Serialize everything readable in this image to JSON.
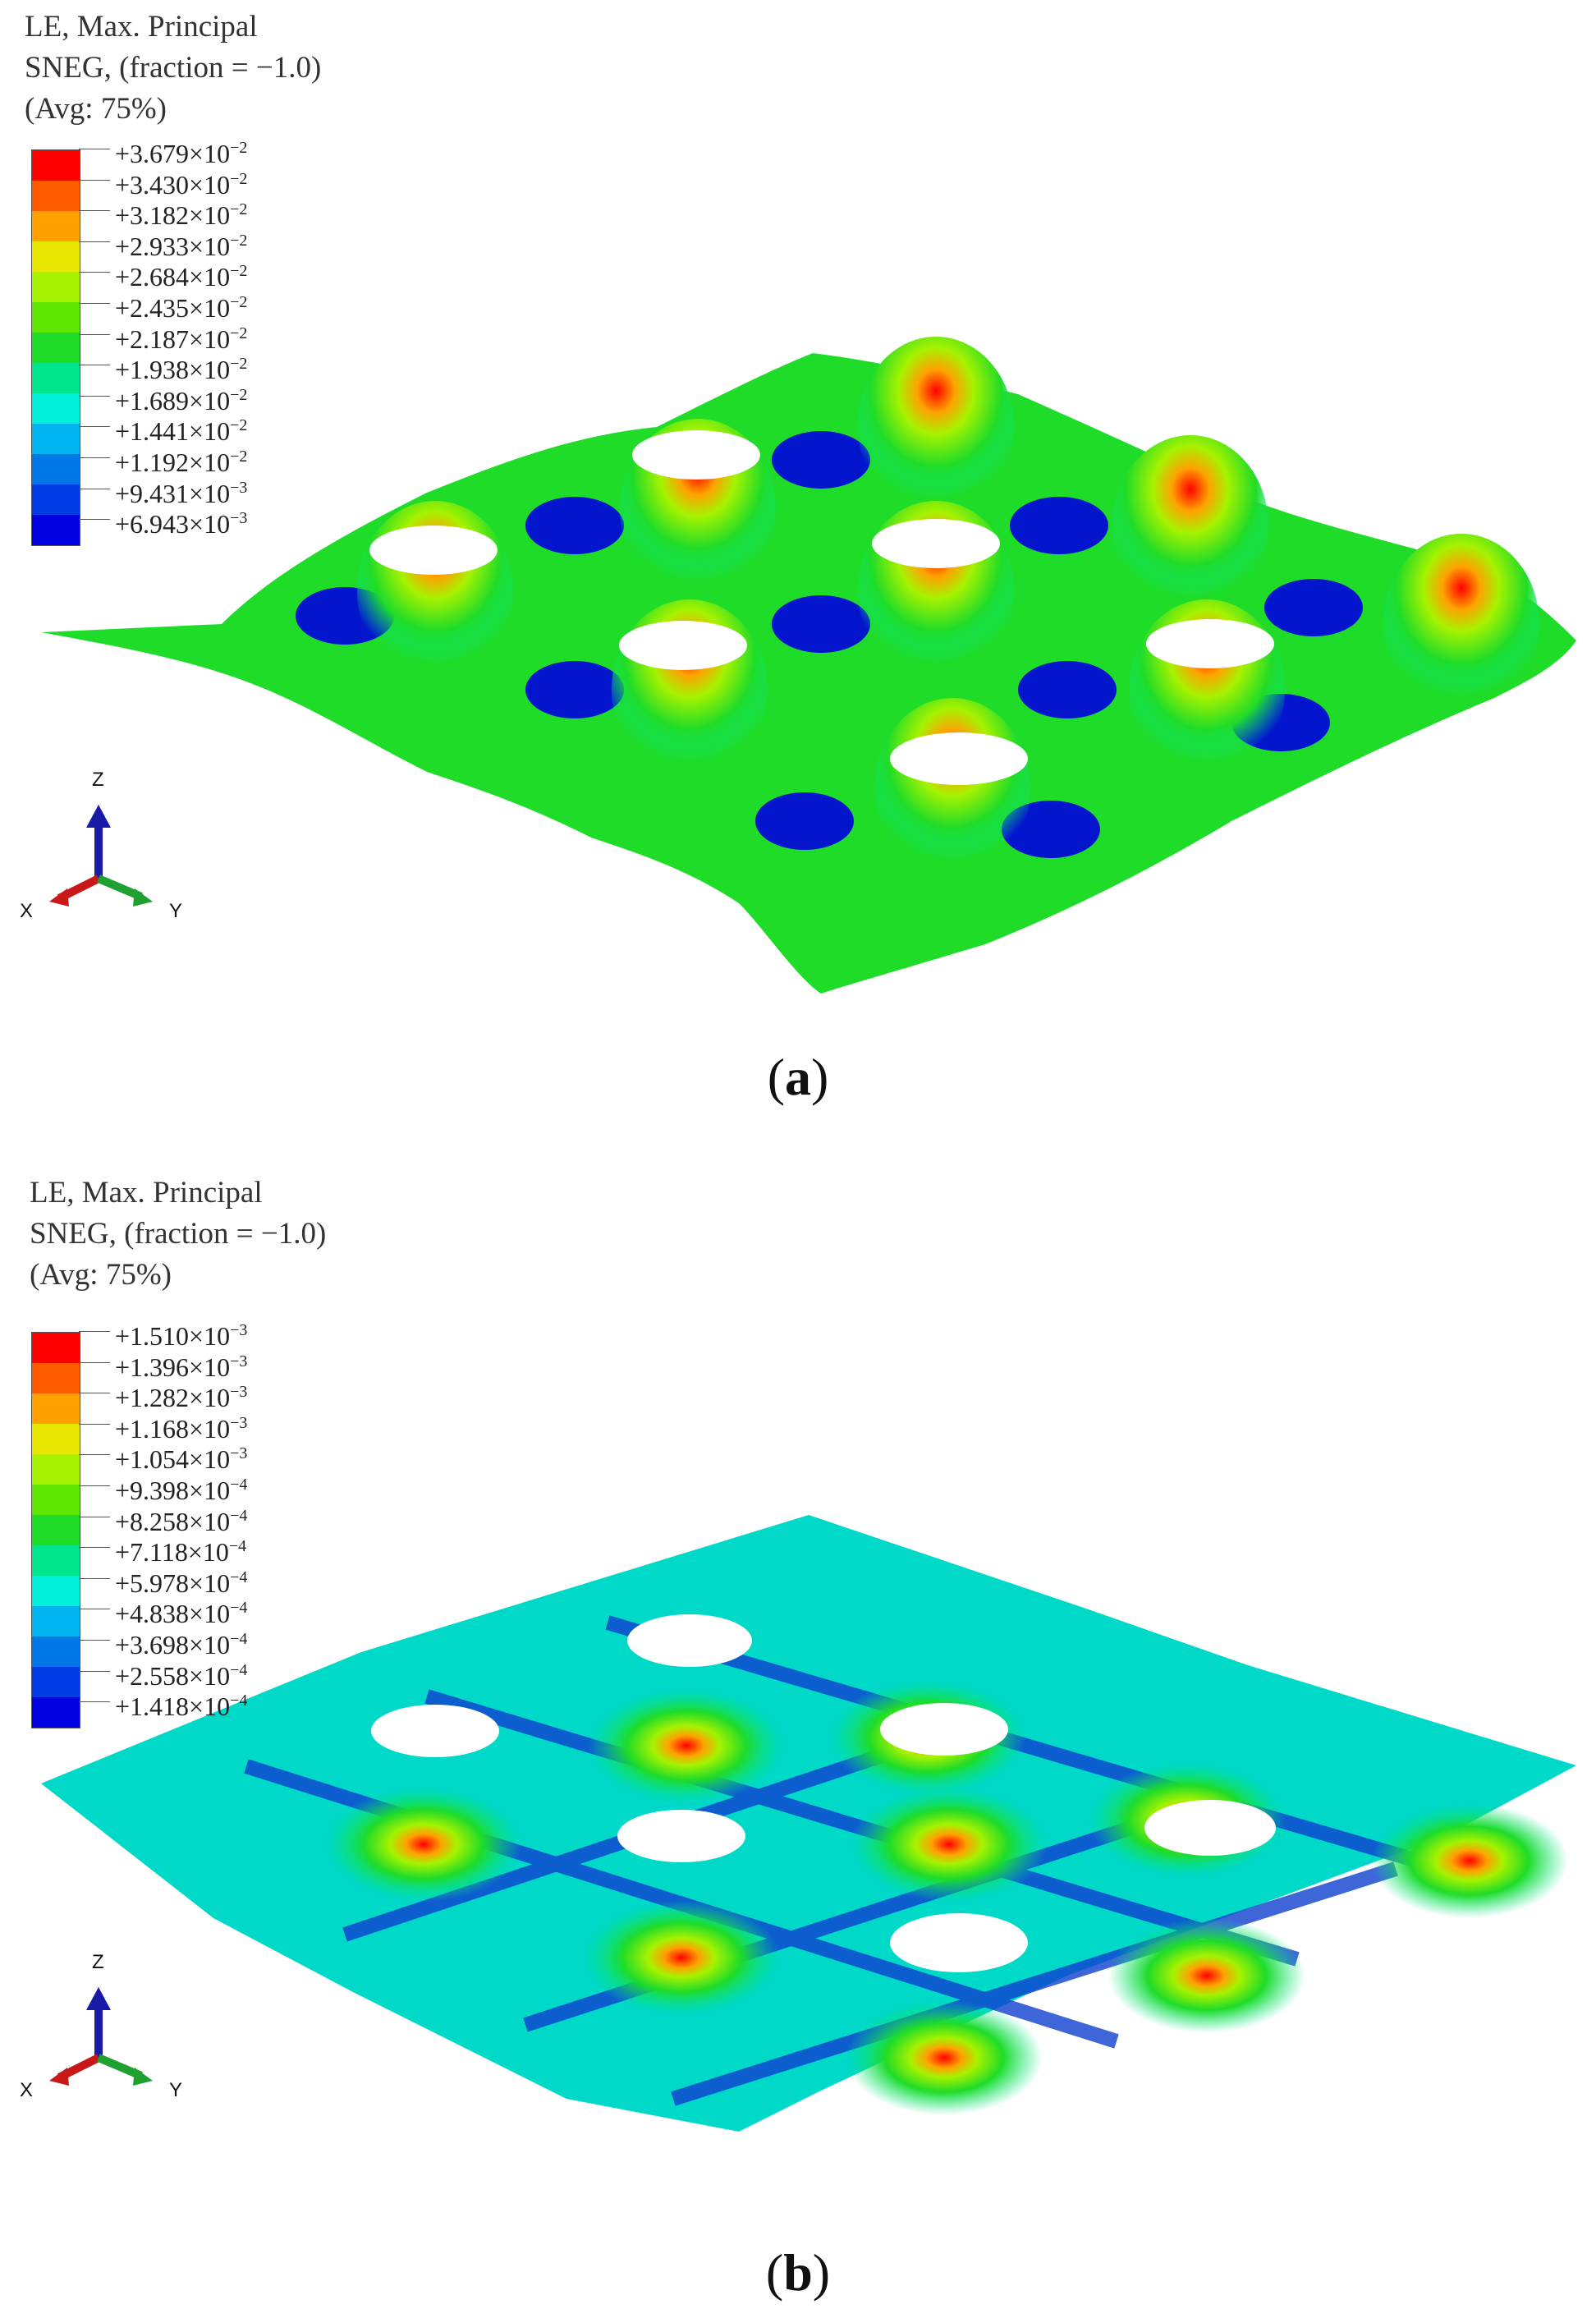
{
  "panels": [
    {
      "id": "a",
      "legend_title_1": "LE, Max. Principal",
      "legend_title_2": "SNEG, (fraction = −1.0)",
      "legend_title_3": "(Avg: 75%)",
      "legend_values": [
        "+3.679×10",
        "+3.430×10",
        "+3.182×10",
        "+2.933×10",
        "+2.684×10",
        "+2.435×10",
        "+2.187×10",
        "+1.938×10",
        "+1.689×10",
        "+1.441×10",
        "+1.192×10",
        "+9.431×10",
        "+6.943×10"
      ],
      "legend_exponents": [
        "−2",
        "−2",
        "−2",
        "−2",
        "−2",
        "−2",
        "−2",
        "−2",
        "−2",
        "−2",
        "−2",
        "−3",
        "−3"
      ],
      "axis_z": "Z",
      "axis_x": "X",
      "axis_y": "Y",
      "caption_open": "(",
      "caption_letter": "a",
      "caption_close": ")"
    },
    {
      "id": "b",
      "legend_title_1": "LE, Max. Principal",
      "legend_title_2": "SNEG, (fraction = −1.0)",
      "legend_title_3": "(Avg: 75%)",
      "legend_values": [
        "+1.510×10",
        "+1.396×10",
        "+1.282×10",
        "+1.168×10",
        "+1.054×10",
        "+9.398×10",
        "+8.258×10",
        "+7.118×10",
        "+5.978×10",
        "+4.838×10",
        "+3.698×10",
        "+2.558×10",
        "+1.418×10"
      ],
      "legend_exponents": [
        "−3",
        "−3",
        "−3",
        "−3",
        "−3",
        "−4",
        "−4",
        "−4",
        "−4",
        "−4",
        "−4",
        "−4",
        "−4"
      ],
      "axis_z": "Z",
      "axis_x": "X",
      "axis_y": "Y",
      "caption_open": "(",
      "caption_letter": "b",
      "caption_close": ")"
    }
  ],
  "colormap": [
    "#ff0000",
    "#ff5a00",
    "#ffa200",
    "#e6e600",
    "#a6f200",
    "#5ce600",
    "#1fdc28",
    "#00e68c",
    "#00f0dc",
    "#00b4f0",
    "#0077e6",
    "#003ce6",
    "#0000e0"
  ]
}
